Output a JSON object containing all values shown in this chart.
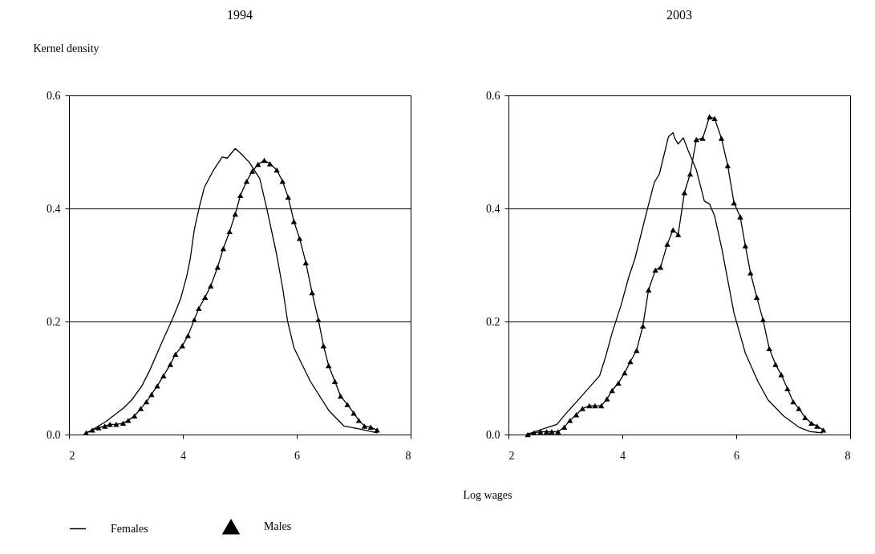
{
  "chart_data": [
    {
      "type": "line",
      "title": "1994",
      "ylabel": "Kernel density",
      "xlabel": "Log wages",
      "legend": "bottom",
      "grid": "y",
      "xlim": [
        2,
        8
      ],
      "xticks": [
        2,
        4,
        6,
        8
      ],
      "ylim": [
        0,
        0.6
      ],
      "yticks": [
        {
          "value": 0,
          "label": "0.0"
        },
        0.2,
        0.4,
        0.6
      ],
      "series": [
        {
          "name": "Females",
          "color": "#000000",
          "x": [
            2.27,
            2.65,
            2.74,
            2.95,
            3.1,
            3.28,
            3.42,
            3.64,
            3.82,
            3.96,
            4.07,
            4.13,
            4.2,
            4.29,
            4.38,
            4.54,
            4.69,
            4.78,
            4.92,
            5.03,
            5.17,
            5.35,
            5.48,
            5.64,
            5.75,
            5.84,
            5.95,
            6.02,
            6.24,
            6.56,
            6.83,
            7.09,
            7.41
          ],
          "values": [
            0.0,
            0.023,
            0.03,
            0.046,
            0.061,
            0.086,
            0.114,
            0.165,
            0.205,
            0.24,
            0.281,
            0.311,
            0.362,
            0.403,
            0.438,
            0.468,
            0.491,
            0.489,
            0.506,
            0.496,
            0.481,
            0.453,
            0.397,
            0.322,
            0.261,
            0.2,
            0.154,
            0.139,
            0.094,
            0.043,
            0.015,
            0.01,
            0.003
          ]
        },
        {
          "name": "Males",
          "color": "#000000",
          "marker": "triangle",
          "x": [
            2.3,
            2.41,
            2.52,
            2.63,
            2.72,
            2.83,
            2.95,
            3.04,
            3.15,
            3.26,
            3.36,
            3.45,
            3.55,
            3.66,
            3.78,
            3.87,
            3.99,
            4.09,
            4.2,
            4.28,
            4.39,
            4.49,
            4.61,
            4.71,
            4.82,
            4.92,
            5.01,
            5.12,
            5.22,
            5.32,
            5.43,
            5.53,
            5.65,
            5.75,
            5.85,
            5.95,
            6.05,
            6.16,
            6.27,
            6.38,
            6.47,
            6.56,
            6.67,
            6.77,
            6.89,
            7.0,
            7.09,
            7.19,
            7.3,
            7.41
          ],
          "values": [
            0.003,
            0.008,
            0.012,
            0.015,
            0.018,
            0.018,
            0.02,
            0.025,
            0.033,
            0.046,
            0.058,
            0.071,
            0.086,
            0.104,
            0.124,
            0.142,
            0.157,
            0.175,
            0.203,
            0.223,
            0.243,
            0.263,
            0.296,
            0.329,
            0.359,
            0.39,
            0.423,
            0.448,
            0.466,
            0.478,
            0.485,
            0.479,
            0.468,
            0.448,
            0.42,
            0.377,
            0.347,
            0.304,
            0.251,
            0.203,
            0.157,
            0.122,
            0.094,
            0.068,
            0.053,
            0.038,
            0.025,
            0.015,
            0.013,
            0.008
          ]
        }
      ]
    },
    {
      "type": "line",
      "title": "2003",
      "legend": "bottom",
      "grid": "y",
      "xlim": [
        2,
        8
      ],
      "xticks": [
        2,
        4,
        6,
        8
      ],
      "ylim": [
        0,
        0.6
      ],
      "yticks": [
        {
          "value": 0,
          "label": "0.0"
        },
        0.2,
        0.4,
        0.6
      ],
      "series": [
        {
          "name": "Females",
          "color": "#000000",
          "x": [
            2.31,
            2.76,
            2.85,
            2.99,
            3.24,
            3.6,
            3.71,
            3.82,
            3.98,
            4.11,
            4.22,
            4.45,
            4.56,
            4.65,
            4.81,
            4.89,
            4.92,
            4.98,
            5.07,
            5.15,
            5.3,
            5.44,
            5.53,
            5.62,
            5.75,
            5.96,
            6.16,
            6.38,
            6.56,
            6.83,
            7.1,
            7.3,
            7.51
          ],
          "values": [
            0.0,
            0.015,
            0.018,
            0.035,
            0.063,
            0.104,
            0.139,
            0.18,
            0.23,
            0.278,
            0.311,
            0.403,
            0.446,
            0.461,
            0.527,
            0.534,
            0.524,
            0.514,
            0.525,
            0.504,
            0.468,
            0.413,
            0.408,
            0.387,
            0.327,
            0.215,
            0.144,
            0.094,
            0.061,
            0.033,
            0.013,
            0.005,
            0.003
          ]
        },
        {
          "name": "Males",
          "color": "#000000",
          "marker": "triangle",
          "x": [
            2.34,
            2.45,
            2.56,
            2.67,
            2.76,
            2.87,
            2.98,
            3.08,
            3.19,
            3.3,
            3.42,
            3.52,
            3.63,
            3.73,
            3.82,
            3.93,
            4.04,
            4.14,
            4.25,
            4.36,
            4.46,
            4.58,
            4.67,
            4.79,
            4.89,
            4.98,
            5.09,
            5.19,
            5.3,
            5.41,
            5.53,
            5.62,
            5.74,
            5.85,
            5.96,
            6.07,
            6.16,
            6.25,
            6.36,
            6.47,
            6.58,
            6.69,
            6.79,
            6.9,
            7.0,
            7.1,
            7.21,
            7.32,
            7.42,
            7.53
          ],
          "values": [
            0.0,
            0.003,
            0.005,
            0.005,
            0.005,
            0.005,
            0.013,
            0.025,
            0.035,
            0.046,
            0.051,
            0.051,
            0.051,
            0.063,
            0.078,
            0.091,
            0.109,
            0.129,
            0.149,
            0.192,
            0.256,
            0.291,
            0.296,
            0.337,
            0.362,
            0.354,
            0.428,
            0.461,
            0.522,
            0.524,
            0.562,
            0.559,
            0.524,
            0.476,
            0.41,
            0.385,
            0.334,
            0.286,
            0.243,
            0.203,
            0.152,
            0.124,
            0.106,
            0.081,
            0.058,
            0.046,
            0.03,
            0.02,
            0.015,
            0.008
          ]
        }
      ]
    }
  ]
}
